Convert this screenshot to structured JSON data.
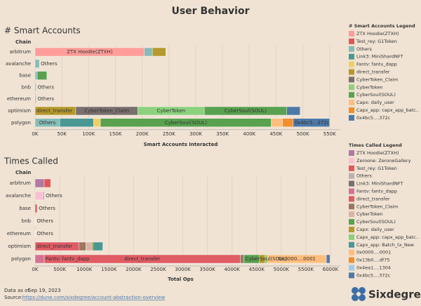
{
  "header": {
    "title": "User Behavior"
  },
  "chart_data": [
    {
      "type": "bar",
      "orientation": "horizontal",
      "stacked": true,
      "title": "# Smart Accounts",
      "y_label": "Chain",
      "x_label": "Smart Accounts Interacted",
      "legend_title": "# Smart Accounts Legend",
      "grid": true,
      "categories": [
        "arbitrum",
        "avalanche",
        "base",
        "bnb",
        "ethereum",
        "optimism",
        "polygon"
      ],
      "xlim": [
        0,
        570000
      ],
      "xticks": [
        {
          "value": 0,
          "label": "0K"
        },
        {
          "value": 50000,
          "label": "50K"
        },
        {
          "value": 100000,
          "label": "100K"
        },
        {
          "value": 150000,
          "label": "150K"
        },
        {
          "value": 200000,
          "label": "200K"
        },
        {
          "value": 250000,
          "label": "250K"
        },
        {
          "value": 300000,
          "label": "300K"
        },
        {
          "value": 350000,
          "label": "350K"
        },
        {
          "value": 400000,
          "label": "400K"
        },
        {
          "value": 450000,
          "label": "450K"
        },
        {
          "value": 500000,
          "label": "500K"
        },
        {
          "value": 550000,
          "label": "550K"
        }
      ],
      "series": [
        {
          "name": "ZTX Hoodie(ZTXH)",
          "color": "#ff9d9a",
          "values": [
            204000,
            null,
            null,
            null,
            null,
            null,
            null
          ],
          "labels": [
            "ZTX Hoodie(ZTXH)",
            null,
            null,
            null,
            null,
            null,
            null
          ]
        },
        {
          "name": "Test_rey: G1Token",
          "color": "#e15759",
          "values": [
            null,
            null,
            null,
            null,
            null,
            null,
            null
          ]
        },
        {
          "name": "Others",
          "color": "#86bcb6",
          "values": [
            15000,
            8000,
            4000,
            2000,
            2000,
            null,
            46000
          ],
          "labels": [
            null,
            "Others",
            null,
            "Others",
            "Others",
            null,
            "Others"
          ]
        },
        {
          "name": "Link3: MiniShardNFT",
          "color": "#499894",
          "values": [
            null,
            null,
            null,
            null,
            null,
            null,
            63000
          ]
        },
        {
          "name": "Fantv: fantv_dapp",
          "color": "#f1ce63",
          "values": [
            null,
            null,
            null,
            null,
            null,
            null,
            13000
          ]
        },
        {
          "name": "direct_transfer",
          "color": "#b6992d",
          "values": [
            25000,
            null,
            null,
            null,
            null,
            76000,
            null
          ],
          "labels": [
            null,
            null,
            null,
            null,
            null,
            "direct_transfer",
            null
          ]
        },
        {
          "name": "CyberToken_Claim",
          "color": "#79706e",
          "values": [
            null,
            null,
            null,
            null,
            null,
            116000,
            null
          ],
          "labels": [
            null,
            null,
            null,
            null,
            null,
            "CyberToken_Claim",
            null
          ]
        },
        {
          "name": "CyberToken",
          "color": "#8cd17d",
          "values": [
            null,
            null,
            null,
            null,
            null,
            124000,
            null
          ],
          "labels": [
            null,
            null,
            null,
            null,
            null,
            "CyberToken",
            null
          ]
        },
        {
          "name": "CyberSoul(SOUL)",
          "color": "#59a14f",
          "values": [
            null,
            null,
            18000,
            null,
            null,
            154000,
            319000
          ],
          "labels": [
            null,
            null,
            null,
            null,
            null,
            "CyberSoul(SOUL)",
            "CyberSoul(SOUL)"
          ]
        },
        {
          "name": "Capx: daily_user",
          "color": "#ffbe7d",
          "values": [
            null,
            null,
            null,
            null,
            null,
            null,
            21000
          ]
        },
        {
          "name": "Capx_app: capx_app_batc..",
          "color": "#f28e2b",
          "values": [
            null,
            null,
            null,
            null,
            null,
            null,
            20000
          ]
        },
        {
          "name": "0x4bc5....372c",
          "color": "#4e79a7",
          "values": [
            null,
            null,
            null,
            null,
            null,
            25000,
            68000
          ],
          "labels": [
            null,
            null,
            null,
            null,
            null,
            null,
            "0x4bc5...372c"
          ]
        }
      ]
    },
    {
      "type": "bar",
      "orientation": "horizontal",
      "stacked": true,
      "title": "Times Called",
      "y_label": "Chain",
      "x_label": "Total Ops",
      "legend_title": "Times Called Legend",
      "grid": true,
      "categories": [
        "arbitrum",
        "avalanche",
        "base",
        "bnb",
        "ethereum",
        "optimism",
        "polygon"
      ],
      "xlim": [
        0,
        6200000
      ],
      "xticks": [
        {
          "value": 0,
          "label": "0K"
        },
        {
          "value": 500000,
          "label": "500K"
        },
        {
          "value": 1000000,
          "label": "1000K"
        },
        {
          "value": 1500000,
          "label": "1500K"
        },
        {
          "value": 2000000,
          "label": "2000K"
        },
        {
          "value": 2500000,
          "label": "2500K"
        },
        {
          "value": 3000000,
          "label": "3000K"
        },
        {
          "value": 3500000,
          "label": "3500K"
        },
        {
          "value": 4000000,
          "label": "4000K"
        },
        {
          "value": 4500000,
          "label": "4500K"
        },
        {
          "value": 5000000,
          "label": "5000K"
        },
        {
          "value": 5500000,
          "label": "5500K"
        },
        {
          "value": 6000000,
          "label": "6000K"
        }
      ],
      "series": [
        {
          "name": "ZTX Hoodie(ZTXH)",
          "color": "#b07aa1",
          "values": [
            186000,
            null,
            null,
            null,
            null,
            null,
            null
          ]
        },
        {
          "name": "Zeroone: ZeroneGallery",
          "color": "#fabfd2",
          "values": [
            null,
            158000,
            null,
            null,
            null,
            null,
            null
          ]
        },
        {
          "name": "Test_rey: G1Token",
          "color": "#e15759",
          "values": [
            130000,
            null,
            43000,
            null,
            null,
            null,
            null
          ]
        },
        {
          "name": "Others",
          "color": "#bab0ac",
          "values": [
            null,
            30000,
            5000,
            5000,
            5000,
            null,
            null
          ],
          "labels": [
            null,
            "Others",
            "Others",
            "Others",
            "Others",
            null,
            null
          ]
        },
        {
          "name": "Link3: MiniShardNFT",
          "color": "#79706e",
          "values": [
            null,
            null,
            null,
            null,
            null,
            null,
            null
          ]
        },
        {
          "name": "Fantv: fantv_dapp",
          "color": "#d37295",
          "values": [
            null,
            null,
            null,
            null,
            null,
            null,
            186000
          ],
          "labels": [
            null,
            null,
            null,
            null,
            null,
            null,
            "Fantv: fantv_dapp"
          ]
        },
        {
          "name": "direct_transfer",
          "color": "#e05c64",
          "values": [
            null,
            null,
            null,
            null,
            null,
            888000,
            3983000
          ],
          "labels": [
            null,
            null,
            null,
            null,
            null,
            "direct_transfer",
            "direct_transfer"
          ]
        },
        {
          "name": "CyberToken_Claim",
          "color": "#9d7660",
          "values": [
            null,
            null,
            null,
            null,
            null,
            143000,
            72000
          ]
        },
        {
          "name": "CyberToken",
          "color": "#d7b5a6",
          "values": [
            null,
            null,
            null,
            null,
            null,
            115000,
            null
          ]
        },
        {
          "name": "CyberSoul(SOUL)",
          "color": "#59a14f",
          "values": [
            null,
            null,
            null,
            null,
            null,
            null,
            315000
          ],
          "labels": [
            null,
            null,
            null,
            null,
            null,
            null,
            "CyberSoul(SOUL)"
          ]
        },
        {
          "name": "Capx: daily_user",
          "color": "#b6992d",
          "values": [
            null,
            null,
            null,
            null,
            null,
            29000,
            115000
          ]
        },
        {
          "name": "Capx_app: capx_app_batc..",
          "color": "#8cd17d",
          "values": [
            null,
            null,
            null,
            null,
            null,
            null,
            57000
          ]
        },
        {
          "name": "Capx_app: Batch_tx_New",
          "color": "#499894",
          "values": [
            null,
            null,
            null,
            null,
            null,
            200000,
            null
          ]
        },
        {
          "name": "0x0000....0001",
          "color": "#ffbe7d",
          "values": [
            null,
            null,
            null,
            null,
            null,
            null,
            1189000
          ],
          "labels": [
            null,
            null,
            null,
            null,
            null,
            null,
            "0x0000....0001"
          ]
        },
        {
          "name": "0x13b0....df75",
          "color": "#f28e2b",
          "values": [
            null,
            null,
            null,
            null,
            null,
            null,
            null
          ]
        },
        {
          "name": "0x4ea1....1304",
          "color": "#a0cbe8",
          "values": [
            null,
            null,
            null,
            null,
            null,
            null,
            null
          ]
        },
        {
          "name": "0x4bc5....372c",
          "color": "#4e79a7",
          "values": [
            null,
            null,
            null,
            null,
            null,
            null,
            72000
          ]
        }
      ]
    }
  ],
  "footer": {
    "date_label": "Data as of",
    "date": "Sep 19, 2023",
    "source_label": "Source:",
    "source_url": "https://dune.com/sixdegree/account-abstraction-overview",
    "brand": "Sixdegree"
  }
}
